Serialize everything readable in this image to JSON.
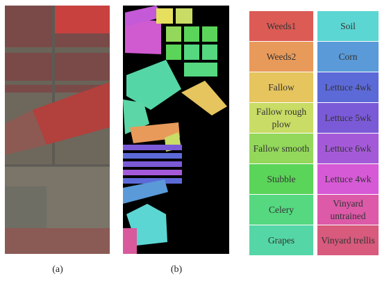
{
  "captions": {
    "a": "(a)",
    "b": "(b)"
  },
  "legend": {
    "left": [
      {
        "label": "Weeds1",
        "color": "#dc5b55"
      },
      {
        "label": "Weeds2",
        "color": "#e89a5a"
      },
      {
        "label": "Fallow",
        "color": "#e6c45e"
      },
      {
        "label": "Fallow rough plow",
        "color": "#c8dc66"
      },
      {
        "label": "Fallow smooth",
        "color": "#93d85a"
      },
      {
        "label": "Stubble",
        "color": "#5bd45a"
      },
      {
        "label": "Celery",
        "color": "#55d880"
      },
      {
        "label": "Grapes",
        "color": "#55d6a6"
      }
    ],
    "right": [
      {
        "label": "Soil",
        "color": "#5cd6d3"
      },
      {
        "label": "Corn",
        "color": "#5a9ad8"
      },
      {
        "label": "Lettuce 4wk",
        "color": "#5c6ad8"
      },
      {
        "label": "Lettuce 5wk",
        "color": "#7b5ad8"
      },
      {
        "label": "Lettuce 6wk",
        "color": "#a45ad8"
      },
      {
        "label": "Lettuce 4wk",
        "color": "#d65ad6"
      },
      {
        "label": "Vinyard untrained",
        "color": "#dc5aa8"
      },
      {
        "label": "Vinyard trellis",
        "color": "#d85a7c"
      }
    ]
  }
}
